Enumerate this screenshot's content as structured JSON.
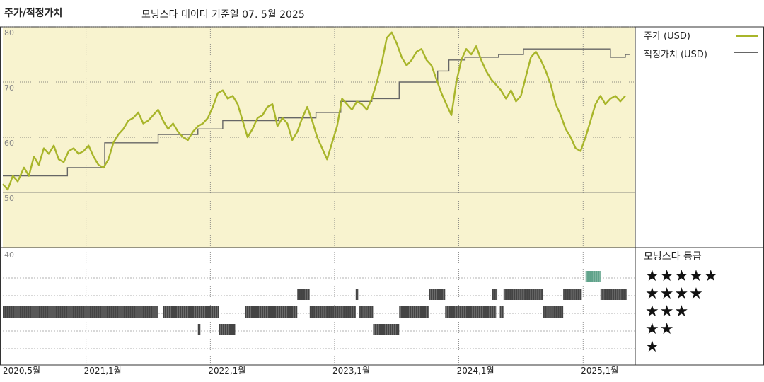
{
  "header": {
    "title": "주가/적정가치",
    "subtitle": "모닝스타 데이터 기준일 07. 5월 2025"
  },
  "legend": {
    "price_label": "주가 (USD)",
    "fair_label": "적정가치 (USD)",
    "price_color": "#a8b52a",
    "fair_color": "#666666",
    "ratings_title": "모닝스타 등급"
  },
  "colors": {
    "plot_bg": "#f8f3cf",
    "rating_bar": "#444444",
    "rating_bar_highlight": "#5fa28a"
  },
  "chart_data": {
    "type": "line",
    "y_ticks": [
      "80",
      "70",
      "60",
      "50",
      "40"
    ],
    "ylim": [
      40,
      80
    ],
    "x_ticks": [
      {
        "label": "2020,5월",
        "t": 2020.333
      },
      {
        "label": "2021,1월",
        "t": 2021.0
      },
      {
        "label": "2022,1월",
        "t": 2022.0
      },
      {
        "label": "2023,1월",
        "t": 2023.0
      },
      {
        "label": "2024,1월",
        "t": 2024.0
      },
      {
        "label": "2025,1월",
        "t": 2025.0
      }
    ],
    "x_range": [
      2020.33,
      2025.42
    ],
    "series": [
      {
        "name": "주가 (USD)",
        "points": [
          [
            2020.33,
            51.5
          ],
          [
            2020.37,
            50.5
          ],
          [
            2020.41,
            53.0
          ],
          [
            2020.45,
            52.0
          ],
          [
            2020.5,
            54.5
          ],
          [
            2020.54,
            53.0
          ],
          [
            2020.58,
            56.5
          ],
          [
            2020.62,
            55.0
          ],
          [
            2020.66,
            58.0
          ],
          [
            2020.7,
            57.0
          ],
          [
            2020.74,
            58.5
          ],
          [
            2020.78,
            56.0
          ],
          [
            2020.82,
            55.5
          ],
          [
            2020.86,
            57.5
          ],
          [
            2020.9,
            58.0
          ],
          [
            2020.94,
            57.0
          ],
          [
            2020.98,
            57.5
          ],
          [
            2021.02,
            58.5
          ],
          [
            2021.06,
            56.5
          ],
          [
            2021.1,
            55.0
          ],
          [
            2021.14,
            54.5
          ],
          [
            2021.18,
            56.0
          ],
          [
            2021.22,
            59.0
          ],
          [
            2021.26,
            60.5
          ],
          [
            2021.3,
            61.5
          ],
          [
            2021.34,
            63.0
          ],
          [
            2021.38,
            63.5
          ],
          [
            2021.42,
            64.5
          ],
          [
            2021.46,
            62.5
          ],
          [
            2021.5,
            63.0
          ],
          [
            2021.54,
            64.0
          ],
          [
            2021.58,
            65.0
          ],
          [
            2021.62,
            63.0
          ],
          [
            2021.66,
            61.5
          ],
          [
            2021.7,
            62.5
          ],
          [
            2021.74,
            61.0
          ],
          [
            2021.78,
            60.0
          ],
          [
            2021.82,
            59.5
          ],
          [
            2021.86,
            61.0
          ],
          [
            2021.9,
            62.0
          ],
          [
            2021.94,
            62.5
          ],
          [
            2021.98,
            63.5
          ],
          [
            2022.02,
            65.5
          ],
          [
            2022.06,
            68.0
          ],
          [
            2022.1,
            68.5
          ],
          [
            2022.14,
            67.0
          ],
          [
            2022.18,
            67.5
          ],
          [
            2022.22,
            66.0
          ],
          [
            2022.26,
            63.0
          ],
          [
            2022.3,
            60.0
          ],
          [
            2022.34,
            61.5
          ],
          [
            2022.38,
            63.5
          ],
          [
            2022.42,
            64.0
          ],
          [
            2022.46,
            65.5
          ],
          [
            2022.5,
            66.0
          ],
          [
            2022.54,
            62.0
          ],
          [
            2022.58,
            63.5
          ],
          [
            2022.62,
            62.5
          ],
          [
            2022.66,
            59.5
          ],
          [
            2022.7,
            61.0
          ],
          [
            2022.74,
            63.5
          ],
          [
            2022.78,
            65.5
          ],
          [
            2022.82,
            63.0
          ],
          [
            2022.86,
            60.0
          ],
          [
            2022.9,
            58.0
          ],
          [
            2022.94,
            56.0
          ],
          [
            2022.98,
            59.0
          ],
          [
            2023.02,
            62.0
          ],
          [
            2023.06,
            67.0
          ],
          [
            2023.1,
            66.0
          ],
          [
            2023.14,
            65.0
          ],
          [
            2023.18,
            66.5
          ],
          [
            2023.22,
            66.0
          ],
          [
            2023.26,
            65.0
          ],
          [
            2023.3,
            67.0
          ],
          [
            2023.34,
            70.0
          ],
          [
            2023.38,
            73.5
          ],
          [
            2023.42,
            78.0
          ],
          [
            2023.46,
            79.0
          ],
          [
            2023.5,
            77.0
          ],
          [
            2023.54,
            74.5
          ],
          [
            2023.58,
            73.0
          ],
          [
            2023.62,
            74.0
          ],
          [
            2023.66,
            75.5
          ],
          [
            2023.7,
            76.0
          ],
          [
            2023.74,
            74.0
          ],
          [
            2023.78,
            73.0
          ],
          [
            2023.82,
            70.5
          ],
          [
            2023.86,
            68.0
          ],
          [
            2023.9,
            66.0
          ],
          [
            2023.94,
            64.0
          ],
          [
            2023.98,
            70.0
          ],
          [
            2024.02,
            74.0
          ],
          [
            2024.06,
            76.0
          ],
          [
            2024.1,
            75.0
          ],
          [
            2024.14,
            76.5
          ],
          [
            2024.18,
            74.0
          ],
          [
            2024.22,
            72.0
          ],
          [
            2024.26,
            70.5
          ],
          [
            2024.3,
            69.5
          ],
          [
            2024.34,
            68.5
          ],
          [
            2024.38,
            67.0
          ],
          [
            2024.42,
            68.5
          ],
          [
            2024.46,
            66.5
          ],
          [
            2024.5,
            67.5
          ],
          [
            2024.54,
            71.0
          ],
          [
            2024.58,
            74.5
          ],
          [
            2024.62,
            75.5
          ],
          [
            2024.66,
            74.0
          ],
          [
            2024.7,
            72.0
          ],
          [
            2024.74,
            69.5
          ],
          [
            2024.78,
            66.0
          ],
          [
            2024.82,
            64.0
          ],
          [
            2024.86,
            61.5
          ],
          [
            2024.9,
            60.0
          ],
          [
            2024.94,
            58.0
          ],
          [
            2024.98,
            57.5
          ],
          [
            2025.02,
            60.0
          ],
          [
            2025.06,
            63.0
          ],
          [
            2025.1,
            66.0
          ],
          [
            2025.14,
            67.5
          ],
          [
            2025.18,
            66.0
          ],
          [
            2025.22,
            67.0
          ],
          [
            2025.26,
            67.5
          ],
          [
            2025.3,
            66.5
          ],
          [
            2025.34,
            67.5
          ]
        ]
      },
      {
        "name": "적정가치 (USD)",
        "steps": [
          [
            2020.33,
            53.0
          ],
          [
            2020.85,
            54.5
          ],
          [
            2021.15,
            59.0
          ],
          [
            2021.58,
            60.5
          ],
          [
            2021.9,
            61.5
          ],
          [
            2022.1,
            63.0
          ],
          [
            2022.55,
            63.5
          ],
          [
            2022.85,
            64.5
          ],
          [
            2023.05,
            66.5
          ],
          [
            2023.3,
            67.0
          ],
          [
            2023.52,
            70.0
          ],
          [
            2023.83,
            72.0
          ],
          [
            2023.92,
            74.0
          ],
          [
            2024.05,
            74.5
          ],
          [
            2024.32,
            75.0
          ],
          [
            2024.52,
            76.0
          ],
          [
            2025.22,
            74.5
          ],
          [
            2025.34,
            75.0
          ]
        ]
      }
    ],
    "ratings": {
      "title": "모닝스타 등급",
      "levels": [
        "★★★★★",
        "★★★★",
        "★★★",
        "★★",
        "★"
      ],
      "periods": [
        {
          "stars": 3,
          "start": 2020.33,
          "end": 2021.58
        },
        {
          "stars": 3,
          "start": 2021.62,
          "end": 2022.07
        },
        {
          "stars": 2,
          "start": 2021.9,
          "end": 2021.92
        },
        {
          "stars": 2,
          "start": 2022.07,
          "end": 2022.2
        },
        {
          "stars": 3,
          "start": 2022.28,
          "end": 2022.7
        },
        {
          "stars": 4,
          "start": 2022.7,
          "end": 2022.8
        },
        {
          "stars": 3,
          "start": 2022.8,
          "end": 2023.17
        },
        {
          "stars": 4,
          "start": 2023.17,
          "end": 2023.19
        },
        {
          "stars": 3,
          "start": 2023.2,
          "end": 2023.31
        },
        {
          "stars": 2,
          "start": 2023.31,
          "end": 2023.52
        },
        {
          "stars": 3,
          "start": 2023.52,
          "end": 2023.76
        },
        {
          "stars": 4,
          "start": 2023.76,
          "end": 2023.89
        },
        {
          "stars": 3,
          "start": 2023.89,
          "end": 2024.3
        },
        {
          "stars": 3,
          "start": 2024.33,
          "end": 2024.36
        },
        {
          "stars": 4,
          "start": 2024.27,
          "end": 2024.31
        },
        {
          "stars": 4,
          "start": 2024.36,
          "end": 2024.68
        },
        {
          "stars": 3,
          "start": 2024.68,
          "end": 2024.84
        },
        {
          "stars": 4,
          "start": 2024.84,
          "end": 2024.99
        },
        {
          "stars": 5,
          "start": 2025.02,
          "end": 2025.14
        },
        {
          "stars": 4,
          "start": 2025.14,
          "end": 2025.35
        }
      ]
    }
  }
}
